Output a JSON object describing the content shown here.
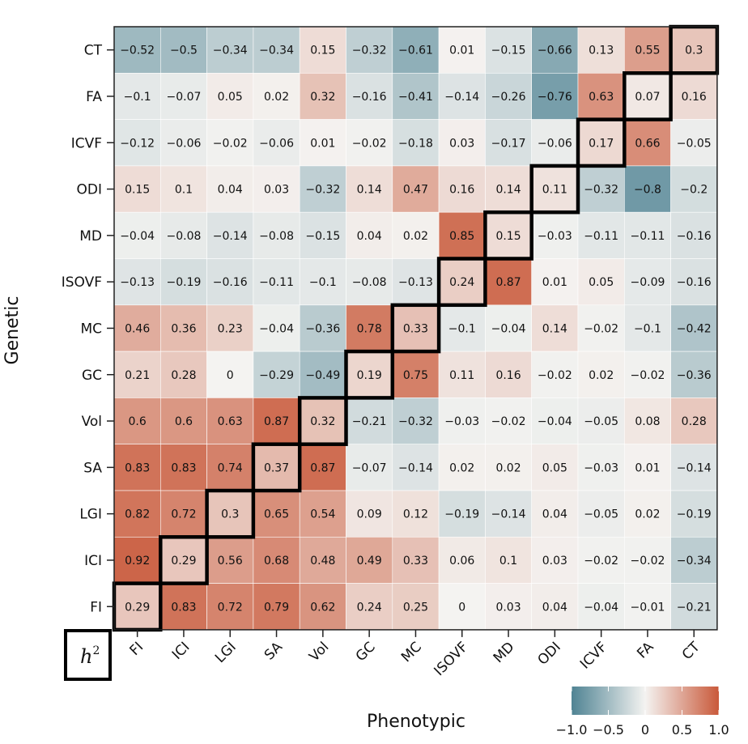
{
  "chart_data": {
    "type": "heatmap",
    "xlabel": "Phenotypic",
    "ylabel": "Genetic",
    "corner_label": "h",
    "corner_label_sup": "2",
    "columns": [
      "FI",
      "ICI",
      "LGI",
      "SA",
      "Vol",
      "GC",
      "MC",
      "ISOVF",
      "MD",
      "ODI",
      "ICVF",
      "FA",
      "CT"
    ],
    "rows": [
      "CT",
      "FA",
      "ICVF",
      "ODI",
      "MD",
      "ISOVF",
      "MC",
      "GC",
      "Vol",
      "SA",
      "LGI",
      "ICI",
      "FI"
    ],
    "values": [
      [
        -0.52,
        -0.5,
        -0.34,
        -0.34,
        0.15,
        -0.32,
        -0.61,
        0.01,
        -0.15,
        -0.66,
        0.13,
        0.55,
        0.3
      ],
      [
        -0.1,
        -0.07,
        0.05,
        0.02,
        0.32,
        -0.16,
        -0.41,
        -0.14,
        -0.26,
        -0.76,
        0.63,
        0.07,
        0.16
      ],
      [
        -0.12,
        -0.06,
        -0.02,
        -0.06,
        0.01,
        -0.02,
        -0.18,
        0.03,
        -0.17,
        -0.06,
        0.17,
        0.66,
        -0.05
      ],
      [
        0.15,
        0.1,
        0.04,
        0.03,
        -0.32,
        0.14,
        0.47,
        0.16,
        0.14,
        0.11,
        -0.32,
        -0.8,
        -0.2
      ],
      [
        -0.04,
        -0.08,
        -0.14,
        -0.08,
        -0.15,
        0.04,
        0.02,
        0.85,
        0.15,
        -0.03,
        -0.11,
        -0.11,
        -0.16
      ],
      [
        -0.13,
        -0.19,
        -0.16,
        -0.11,
        -0.1,
        -0.08,
        -0.13,
        0.24,
        0.87,
        0.01,
        0.05,
        -0.09,
        -0.16
      ],
      [
        0.46,
        0.36,
        0.23,
        -0.04,
        -0.36,
        0.78,
        0.33,
        -0.1,
        -0.04,
        0.14,
        -0.02,
        -0.1,
        -0.42
      ],
      [
        0.21,
        0.28,
        0,
        -0.29,
        -0.49,
        0.19,
        0.75,
        0.11,
        0.16,
        -0.02,
        0.02,
        -0.02,
        -0.36
      ],
      [
        0.6,
        0.6,
        0.63,
        0.87,
        0.32,
        -0.21,
        -0.32,
        -0.03,
        -0.02,
        -0.04,
        -0.05,
        0.08,
        0.28
      ],
      [
        0.83,
        0.83,
        0.74,
        0.37,
        0.87,
        -0.07,
        -0.14,
        0.02,
        0.02,
        0.05,
        -0.03,
        0.01,
        -0.14
      ],
      [
        0.82,
        0.72,
        0.3,
        0.65,
        0.54,
        0.09,
        0.12,
        -0.19,
        -0.14,
        0.04,
        -0.05,
        0.02,
        -0.19
      ],
      [
        0.92,
        0.29,
        0.56,
        0.68,
        0.48,
        0.49,
        0.33,
        0.06,
        0.1,
        0.03,
        -0.02,
        -0.02,
        -0.34
      ],
      [
        0.29,
        0.83,
        0.72,
        0.79,
        0.62,
        0.24,
        0.25,
        0,
        0.03,
        0.04,
        -0.04,
        -0.01,
        -0.21
      ]
    ],
    "heritability_diagonal": {
      "FI": 0.29,
      "ICI": 0.29,
      "LGI": 0.3,
      "SA": 0.37,
      "Vol": 0.32,
      "GC": 0.19,
      "MC": 0.33,
      "ISOVF": 0.24,
      "MD": 0.15,
      "ODI": 0.11,
      "ICVF": 0.17,
      "FA": 0.07,
      "CT": 0.3
    },
    "colorbar": {
      "range": [
        -1.0,
        1.0
      ],
      "ticks": [
        "−1.0",
        "−0.5",
        "0",
        "0.5",
        "1.0"
      ],
      "tick_values": [
        -1.0,
        -0.5,
        0,
        0.5,
        1.0
      ],
      "low_color": "#4f8393",
      "mid_color": "#f4f3f1",
      "high_color": "#c9593a"
    }
  }
}
